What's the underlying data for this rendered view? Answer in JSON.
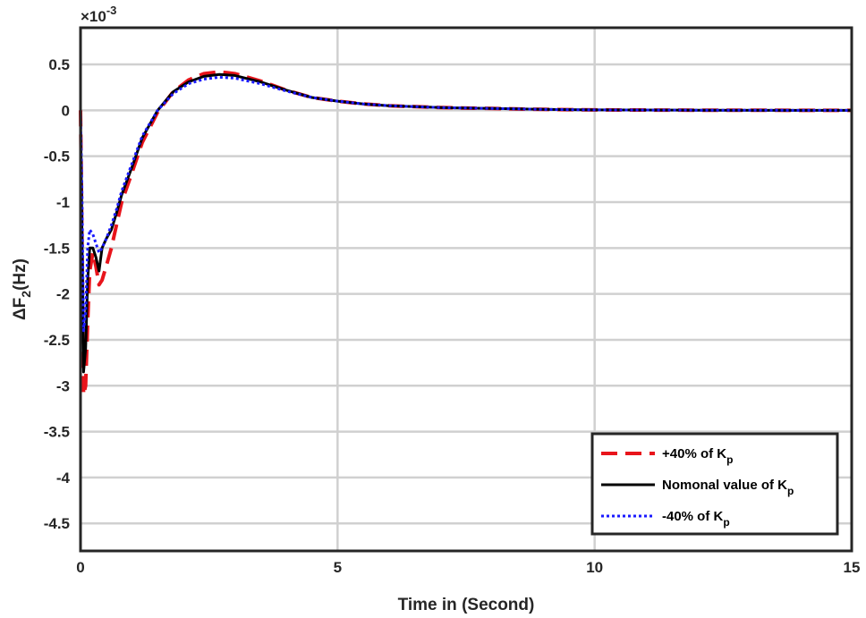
{
  "chart_data": {
    "type": "line",
    "title": "",
    "xlabel": "Time in (Second)",
    "ylabel_base": "ΔF",
    "ylabel_sub": "2",
    "ylabel_suffix": "(Hz)",
    "y_multiplier": "×10",
    "y_multiplier_exp": "-3",
    "xlim": [
      0,
      15
    ],
    "ylim": [
      -4.8,
      0.9
    ],
    "xticks": [
      0,
      5,
      10,
      15
    ],
    "yticks": [
      0.5,
      0,
      -0.5,
      -1,
      -1.5,
      -2,
      -2.5,
      -3,
      -3.5,
      -4,
      -4.5
    ],
    "grid": true,
    "legend_position": "bottom-right",
    "colors": {
      "plus40": "#e8141b",
      "nominal": "#000000",
      "minus40": "#1a1aff",
      "grid": "#d0d0d0",
      "axes": "#262626"
    },
    "series": [
      {
        "key": "plus40",
        "name_main": "+40% of K",
        "name_sub": "p",
        "style": "dashed",
        "x": [
          0,
          0.03,
          0.06,
          0.1,
          0.14,
          0.18,
          0.24,
          0.3,
          0.36,
          0.42,
          0.5,
          0.6,
          0.7,
          0.8,
          1.0,
          1.2,
          1.5,
          1.8,
          2.1,
          2.4,
          2.7,
          3.0,
          3.5,
          4.0,
          4.5,
          5.0,
          5.5,
          6.0,
          7.0,
          8.0,
          9.0,
          10.0,
          12.0,
          15.0
        ],
        "y": [
          0,
          -1.5,
          -3.1,
          -3.0,
          -2.3,
          -1.75,
          -1.55,
          -1.7,
          -1.9,
          -1.85,
          -1.7,
          -1.5,
          -1.25,
          -1.0,
          -0.68,
          -0.35,
          -0.02,
          0.2,
          0.33,
          0.4,
          0.42,
          0.4,
          0.32,
          0.22,
          0.14,
          0.1,
          0.07,
          0.05,
          0.03,
          0.02,
          0.01,
          0.005,
          0.002,
          0
        ]
      },
      {
        "key": "nominal",
        "name_main": "Nomonal value of K",
        "name_sub": "p",
        "style": "solid",
        "x": [
          0,
          0.03,
          0.06,
          0.1,
          0.14,
          0.18,
          0.24,
          0.3,
          0.36,
          0.42,
          0.5,
          0.6,
          0.7,
          0.8,
          1.0,
          1.2,
          1.5,
          1.8,
          2.1,
          2.4,
          2.7,
          3.0,
          3.5,
          4.0,
          4.5,
          5.0,
          5.5,
          6.0,
          7.0,
          8.0,
          9.0,
          10.0,
          12.0,
          15.0
        ],
        "y": [
          0,
          -1.4,
          -2.85,
          -2.6,
          -1.85,
          -1.5,
          -1.5,
          -1.6,
          -1.75,
          -1.5,
          -1.4,
          -1.3,
          -1.12,
          -0.92,
          -0.62,
          -0.3,
          0.0,
          0.2,
          0.31,
          0.37,
          0.39,
          0.38,
          0.31,
          0.22,
          0.14,
          0.1,
          0.07,
          0.05,
          0.03,
          0.02,
          0.01,
          0.005,
          0.002,
          0
        ]
      },
      {
        "key": "minus40",
        "name_main": "-40% of K",
        "name_sub": "p",
        "style": "dotted",
        "x": [
          0,
          0.03,
          0.06,
          0.1,
          0.14,
          0.18,
          0.24,
          0.3,
          0.36,
          0.42,
          0.5,
          0.6,
          0.7,
          0.8,
          1.0,
          1.2,
          1.5,
          1.8,
          2.1,
          2.4,
          2.7,
          3.0,
          3.5,
          4.0,
          4.5,
          5.0,
          5.5,
          6.0,
          7.0,
          8.0,
          9.0,
          10.0,
          12.0,
          15.0
        ],
        "y": [
          0,
          -0.9,
          -2.4,
          -2.2,
          -1.5,
          -1.3,
          -1.35,
          -1.45,
          -1.55,
          -1.5,
          -1.4,
          -1.25,
          -1.08,
          -0.88,
          -0.58,
          -0.28,
          0.0,
          0.18,
          0.29,
          0.34,
          0.36,
          0.35,
          0.29,
          0.21,
          0.14,
          0.1,
          0.07,
          0.05,
          0.03,
          0.02,
          0.01,
          0.005,
          0.002,
          0
        ]
      }
    ]
  }
}
